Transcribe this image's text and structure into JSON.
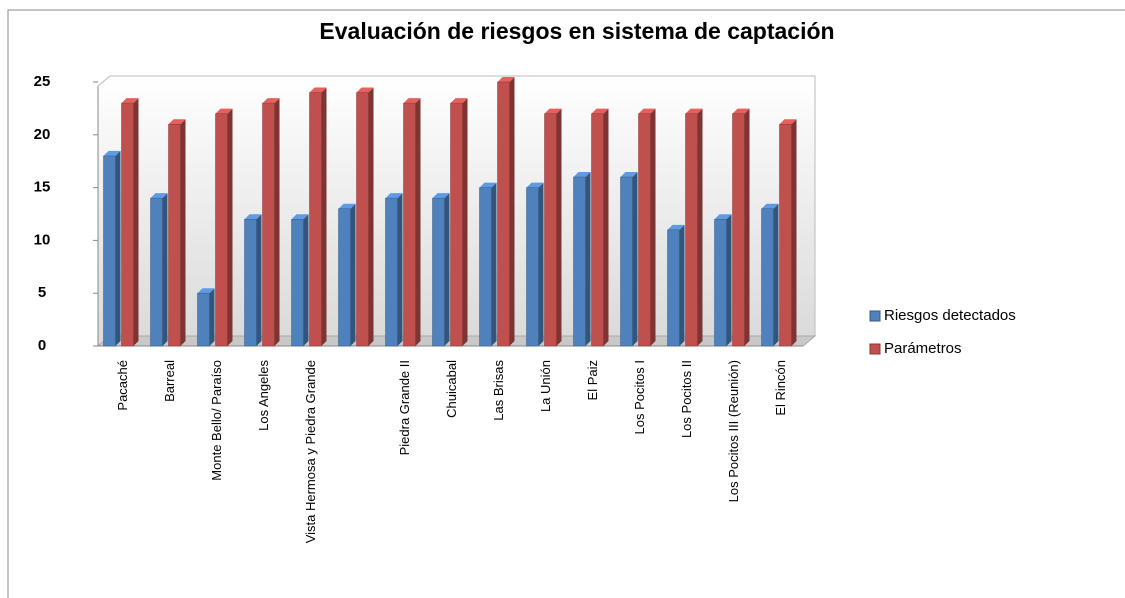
{
  "chart_data": {
    "type": "bar",
    "title": "Evaluación de riesgos en sistema de captación",
    "categories": [
      "Pacaché",
      "Barreal",
      "Monte Bello/ Paraíso",
      "Los Angeles",
      "Vista Hermosa y Piedra Grande",
      null,
      "Piedra Grande II",
      "Chuicabal",
      "Las Brisas",
      "La Unión",
      "El Paiz",
      "Los Pocitos I",
      "Los Pocitos II",
      "Los Pocitos III (Reunión)",
      "El Rincón"
    ],
    "series": [
      {
        "name": "Riesgos detectados",
        "color": "#4f81bd",
        "values": [
          18,
          14,
          5,
          12,
          12,
          13,
          14,
          14,
          15,
          15,
          16,
          16,
          11,
          12,
          13
        ]
      },
      {
        "name": "Parámetros",
        "color": "#c0504d",
        "values": [
          23,
          21,
          22,
          23,
          24,
          24,
          23,
          23,
          25,
          22,
          22,
          22,
          22,
          22,
          21
        ]
      }
    ],
    "ylim": [
      0,
      25
    ],
    "yticks": [
      0,
      5,
      10,
      15,
      20,
      25
    ],
    "grid": false,
    "legend": "right"
  }
}
